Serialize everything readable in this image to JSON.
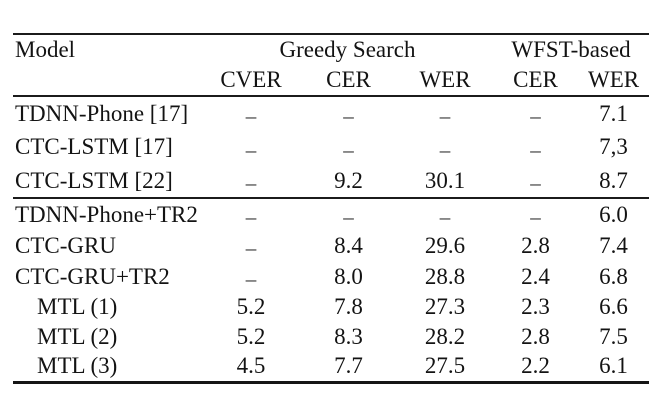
{
  "table": {
    "header": {
      "model": "Model",
      "group_greedy": "Greedy Search",
      "group_wfst": "WFST-based",
      "sub": [
        "CVER",
        "CER",
        "WER",
        "CER",
        "WER"
      ]
    },
    "dash": "–",
    "groups": [
      {
        "rows": [
          {
            "model": "TDNN-Phone [17]",
            "values": [
              "–",
              "–",
              "–",
              "–",
              "7.1"
            ]
          },
          {
            "model": "CTC-LSTM [17]",
            "values": [
              "–",
              "–",
              "–",
              "–",
              "7,3"
            ]
          },
          {
            "model": "CTC-LSTM [22]",
            "values": [
              "–",
              "9.2",
              "30.1",
              "–",
              "8.7"
            ]
          }
        ]
      },
      {
        "rows": [
          {
            "model": "TDNN-Phone+TR2",
            "values": [
              "–",
              "–",
              "–",
              "–",
              "6.0"
            ]
          },
          {
            "model": "CTC-GRU",
            "values": [
              "–",
              "8.4",
              "29.6",
              "2.8",
              "7.4"
            ]
          },
          {
            "model": "CTC-GRU+TR2",
            "values": [
              "–",
              "8.0",
              "28.8",
              "2.4",
              "6.8"
            ]
          },
          {
            "model": "MTL (1)",
            "values": [
              "5.2",
              "7.8",
              "27.3",
              "2.3",
              "6.6"
            ]
          },
          {
            "model": "MTL (2)",
            "values": [
              "5.2",
              "8.3",
              "28.2",
              "2.8",
              "7.5"
            ]
          },
          {
            "model": "MTL (3)",
            "values": [
              "4.5",
              "7.7",
              "27.5",
              "2.2",
              "6.1"
            ]
          }
        ]
      }
    ]
  },
  "colors": {
    "text": "#131313",
    "rule": "#1b1b1b",
    "background": "#ffffff"
  }
}
